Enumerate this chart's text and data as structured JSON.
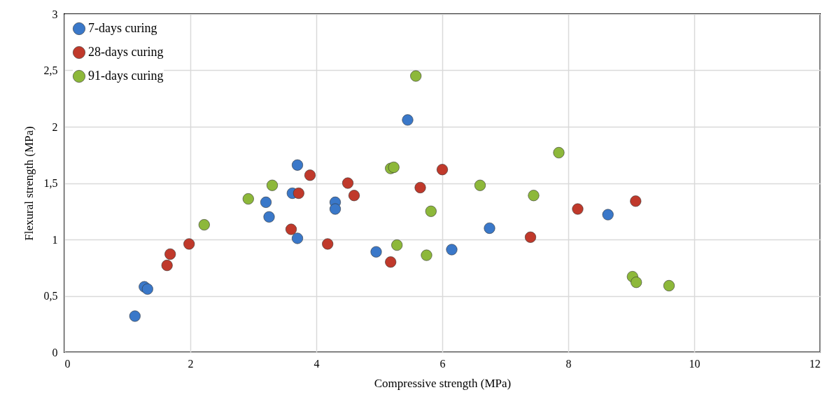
{
  "chart_data": {
    "type": "scatter",
    "xlabel": "Compressive strength (MPa)",
    "ylabel": "Flexural strength (MPa)",
    "xlim": [
      0,
      12
    ],
    "xticks": [
      0,
      2,
      4,
      6,
      8,
      10,
      12
    ],
    "ylim": [
      0,
      3
    ],
    "yticks": [
      0,
      {
        "value": 0.5,
        "label": "0,5"
      },
      1,
      {
        "value": 1.5,
        "label": "1,5"
      },
      2,
      {
        "value": 2.5,
        "label": "2,5"
      },
      3
    ],
    "grid": true,
    "legend": "top left",
    "marker": "circle",
    "series": [
      {
        "name": "7-days curing",
        "color": "#3a78c9",
        "x": [
          1.12,
          1.27,
          1.32,
          3.2,
          3.25,
          3.62,
          3.7,
          3.7,
          4.3,
          4.3,
          4.95,
          5.45,
          6.15,
          6.75,
          8.63
        ],
        "values": [
          0.32,
          0.58,
          0.56,
          1.33,
          1.2,
          1.41,
          1.66,
          1.01,
          1.33,
          1.27,
          0.89,
          2.06,
          0.91,
          1.1,
          1.22
        ]
      },
      {
        "name": "28-days curing",
        "color": "#c0392b",
        "x": [
          1.63,
          1.68,
          1.98,
          3.6,
          3.72,
          3.9,
          4.18,
          4.5,
          4.6,
          5.18,
          5.65,
          6.0,
          7.4,
          8.15,
          9.07
        ],
        "values": [
          0.77,
          0.87,
          0.96,
          1.09,
          1.41,
          1.57,
          0.96,
          1.5,
          1.39,
          0.8,
          1.46,
          1.62,
          1.02,
          1.27,
          1.34
        ]
      },
      {
        "name": "91-days curing",
        "color": "#8db83a",
        "x": [
          2.22,
          2.92,
          3.3,
          5.18,
          5.23,
          5.28,
          5.58,
          5.75,
          5.82,
          6.6,
          7.45,
          7.85,
          9.02,
          9.08,
          9.6
        ],
        "values": [
          1.13,
          1.36,
          1.48,
          1.63,
          1.64,
          0.95,
          2.45,
          0.86,
          1.25,
          1.48,
          1.39,
          1.77,
          0.67,
          0.62,
          0.59
        ]
      }
    ]
  }
}
